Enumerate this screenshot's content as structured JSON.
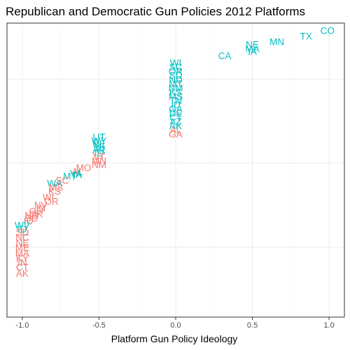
{
  "chart_data": {
    "type": "scatter",
    "title": "Republican and Democratic Gun Policies 2012 Platforms",
    "xlabel": "Platform Gun Policy Ideology",
    "ylabel": "",
    "xlim": [
      -1.1,
      1.1
    ],
    "ylim": [
      -0.05,
      1.0
    ],
    "x_ticks": [
      -1.0,
      -0.5,
      0.0,
      0.5,
      1.0
    ],
    "x_tick_labels": [
      "-1.0",
      "-0.5",
      "0.0",
      "0.5",
      "1.0"
    ],
    "y_ticks": [
      0.2,
      0.5,
      0.8
    ],
    "y_tick_labels": [
      "",
      "",
      ""
    ],
    "grid": true,
    "legend": "none",
    "colors": {
      "salmon": "#F8766D",
      "teal": "#00BFC4",
      "panel_border": "#333333",
      "grid": "#ebebeb"
    },
    "points": [
      {
        "label": "CO",
        "x": 0.99,
        "y": 0.97,
        "color": "teal"
      },
      {
        "label": "TX",
        "x": 0.85,
        "y": 0.95,
        "color": "teal"
      },
      {
        "label": "MN",
        "x": 0.66,
        "y": 0.93,
        "color": "teal"
      },
      {
        "label": "NE",
        "x": 0.5,
        "y": 0.92,
        "color": "teal"
      },
      {
        "label": "MA",
        "x": 0.5,
        "y": 0.905,
        "color": "teal"
      },
      {
        "label": "IA",
        "x": 0.5,
        "y": 0.895,
        "color": "teal"
      },
      {
        "label": "CA",
        "x": 0.32,
        "y": 0.88,
        "color": "teal"
      },
      {
        "label": "WI",
        "x": 0.0,
        "y": 0.855,
        "color": "teal"
      },
      {
        "label": "SC",
        "x": 0.0,
        "y": 0.84,
        "color": "teal"
      },
      {
        "label": "OR",
        "x": 0.0,
        "y": 0.825,
        "color": "teal"
      },
      {
        "label": "SD",
        "x": 0.0,
        "y": 0.81,
        "color": "teal"
      },
      {
        "label": "ND",
        "x": 0.0,
        "y": 0.795,
        "color": "teal"
      },
      {
        "label": "MT",
        "x": 0.0,
        "y": 0.78,
        "color": "teal"
      },
      {
        "label": "NM",
        "x": 0.0,
        "y": 0.765,
        "color": "teal"
      },
      {
        "label": "KS",
        "x": 0.0,
        "y": 0.75,
        "color": "teal"
      },
      {
        "label": "MS",
        "x": 0.0,
        "y": 0.735,
        "color": "teal"
      },
      {
        "label": "TN",
        "x": 0.0,
        "y": 0.72,
        "color": "teal"
      },
      {
        "label": "ID",
        "x": 0.0,
        "y": 0.705,
        "color": "teal"
      },
      {
        "label": "GA",
        "x": 0.0,
        "y": 0.69,
        "color": "teal"
      },
      {
        "label": "DE",
        "x": 0.0,
        "y": 0.675,
        "color": "teal"
      },
      {
        "label": "CT",
        "x": 0.0,
        "y": 0.66,
        "color": "teal"
      },
      {
        "label": "AZ",
        "x": 0.0,
        "y": 0.645,
        "color": "teal"
      },
      {
        "label": "AK",
        "x": 0.0,
        "y": 0.63,
        "color": "teal"
      },
      {
        "label": "AL",
        "x": 0.0,
        "y": 0.615,
        "color": "salmon"
      },
      {
        "label": "GA",
        "x": 0.0,
        "y": 0.6,
        "color": "salmon"
      },
      {
        "label": "UT",
        "x": -0.5,
        "y": 0.59,
        "color": "teal"
      },
      {
        "label": "WY",
        "x": -0.5,
        "y": 0.577,
        "color": "teal"
      },
      {
        "label": "NE",
        "x": -0.5,
        "y": 0.566,
        "color": "teal"
      },
      {
        "label": "MI",
        "x": -0.5,
        "y": 0.555,
        "color": "teal"
      },
      {
        "label": "AR",
        "x": -0.5,
        "y": 0.544,
        "color": "teal"
      },
      {
        "label": "ID",
        "x": -0.5,
        "y": 0.533,
        "color": "teal"
      },
      {
        "label": "VT",
        "x": -0.5,
        "y": 0.52,
        "color": "salmon"
      },
      {
        "label": "MN",
        "x": -0.5,
        "y": 0.505,
        "color": "salmon"
      },
      {
        "label": "NM",
        "x": -0.5,
        "y": 0.492,
        "color": "salmon"
      },
      {
        "label": "MO",
        "x": -0.6,
        "y": 0.48,
        "color": "salmon"
      },
      {
        "label": "AL",
        "x": -0.64,
        "y": 0.467,
        "color": "salmon"
      },
      {
        "label": "IA",
        "x": -0.64,
        "y": 0.455,
        "color": "teal"
      },
      {
        "label": "VA",
        "x": -0.65,
        "y": 0.46,
        "color": "teal"
      },
      {
        "label": "MT",
        "x": -0.69,
        "y": 0.45,
        "color": "teal"
      },
      {
        "label": "SC",
        "x": -0.74,
        "y": 0.435,
        "color": "salmon"
      },
      {
        "label": "WA",
        "x": -0.79,
        "y": 0.425,
        "color": "teal"
      },
      {
        "label": "MS",
        "x": -0.78,
        "y": 0.41,
        "color": "salmon"
      },
      {
        "label": "KS",
        "x": -0.79,
        "y": 0.397,
        "color": "salmon"
      },
      {
        "label": "WI",
        "x": -0.83,
        "y": 0.375,
        "color": "salmon"
      },
      {
        "label": "OR",
        "x": -0.81,
        "y": 0.36,
        "color": "salmon"
      },
      {
        "label": "NV",
        "x": -0.88,
        "y": 0.347,
        "color": "salmon"
      },
      {
        "label": "IN",
        "x": -0.88,
        "y": 0.337,
        "color": "salmon"
      },
      {
        "label": "OH",
        "x": -0.91,
        "y": 0.325,
        "color": "salmon"
      },
      {
        "label": "OK",
        "x": -0.91,
        "y": 0.315,
        "color": "salmon"
      },
      {
        "label": "ND",
        "x": -0.94,
        "y": 0.31,
        "color": "salmon"
      },
      {
        "label": "SD",
        "x": -0.94,
        "y": 0.3,
        "color": "salmon"
      },
      {
        "label": "ID",
        "x": -0.96,
        "y": 0.29,
        "color": "salmon"
      },
      {
        "label": "WV",
        "x": -1.0,
        "y": 0.275,
        "color": "teal"
      },
      {
        "label": "ID",
        "x": -1.0,
        "y": 0.262,
        "color": "teal"
      },
      {
        "label": "SD",
        "x": -1.0,
        "y": 0.25,
        "color": "salmon"
      },
      {
        "label": "NC",
        "x": -1.0,
        "y": 0.232,
        "color": "salmon"
      },
      {
        "label": "NE",
        "x": -1.0,
        "y": 0.212,
        "color": "salmon"
      },
      {
        "label": "ME",
        "x": -1.0,
        "y": 0.195,
        "color": "salmon"
      },
      {
        "label": "MA",
        "x": -1.0,
        "y": 0.175,
        "color": "salmon"
      },
      {
        "label": "KY",
        "x": -1.0,
        "y": 0.157,
        "color": "salmon"
      },
      {
        "label": "IN",
        "x": -1.0,
        "y": 0.142,
        "color": "salmon"
      },
      {
        "label": "CT",
        "x": -1.0,
        "y": 0.125,
        "color": "salmon"
      },
      {
        "label": "AK",
        "x": -1.0,
        "y": 0.103,
        "color": "salmon"
      }
    ]
  }
}
